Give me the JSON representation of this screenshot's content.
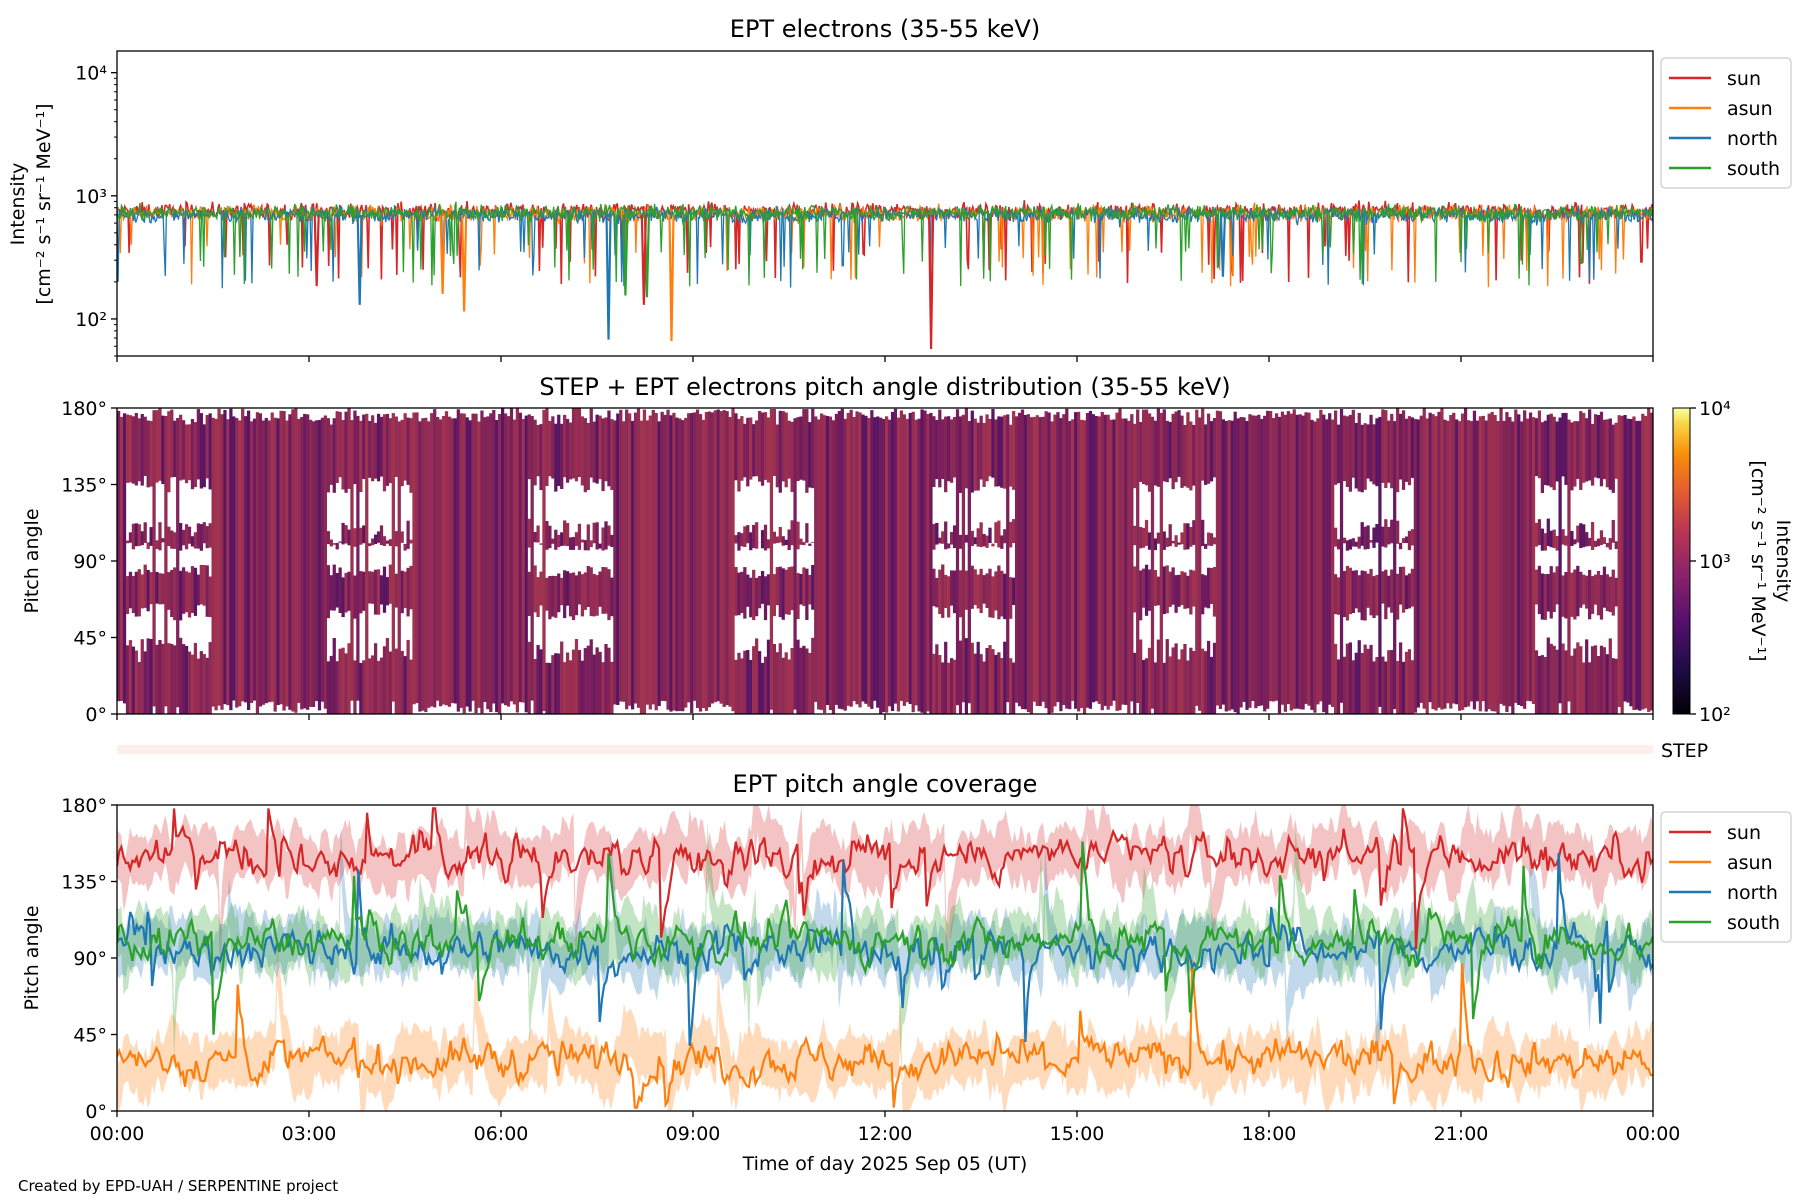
{
  "credit": "Created by EPD-UAH / SERPENTINE project",
  "colors": {
    "sun": "#d62728",
    "asun": "#ff7f0e",
    "north": "#1f77b4",
    "south": "#2ca02c",
    "pad": "#8b2a55"
  },
  "chart_data": [
    {
      "type": "line",
      "title": "EPT electrons (35-55 keV)",
      "ylabel": [
        "Intensity",
        "[cm⁻² s⁻¹ sr⁻¹ MeV⁻¹]"
      ],
      "yscale": "log",
      "ylim": [
        50,
        15000
      ],
      "yticks": [
        {
          "value": 100,
          "label": "10²"
        },
        {
          "value": 1000,
          "label": "10³"
        },
        {
          "value": 10000,
          "label": "10⁴"
        }
      ],
      "xlim_hours": [
        0,
        24
      ],
      "legend": "outside-right",
      "series": [
        {
          "name": "sun",
          "color": "#d62728",
          "baseline": 750,
          "min_dip": 57
        },
        {
          "name": "asun",
          "color": "#ff7f0e",
          "baseline": 720,
          "min_dip": 66
        },
        {
          "name": "north",
          "color": "#1f77b4",
          "baseline": 700,
          "min_dip": 68
        },
        {
          "name": "south",
          "color": "#2ca02c",
          "baseline": 730,
          "min_dip": 150
        }
      ]
    },
    {
      "type": "heatmap",
      "title": "STEP + EPT electrons pitch angle distribution (35-55 keV)",
      "ylabel": "Pitch angle",
      "ylim": [
        0,
        180
      ],
      "yticks": [
        "0°",
        "45°",
        "90°",
        "135°",
        "180°"
      ],
      "colorbar": {
        "label": [
          "Intensity",
          "[cm⁻² s⁻¹ sr⁻¹ MeV⁻¹]"
        ],
        "scale": "log",
        "range": [
          100,
          10000
        ],
        "ticks": [
          {
            "value": 100,
            "label": "10²"
          },
          {
            "value": 1000,
            "label": "10³"
          },
          {
            "value": 10000,
            "label": "10⁴"
          }
        ],
        "colormap": "inferno"
      }
    },
    {
      "type": "bar",
      "label": "STEP",
      "color": "#fdf0ea"
    },
    {
      "type": "line",
      "title": "EPT pitch angle coverage",
      "ylabel": "Pitch angle",
      "ylim": [
        0,
        180
      ],
      "yticks": [
        "0°",
        "45°",
        "90°",
        "135°",
        "180°"
      ],
      "xlabel": "Time of day 2025 Sep 05 (UT)",
      "xticks": [
        "00:00",
        "03:00",
        "06:00",
        "09:00",
        "12:00",
        "15:00",
        "18:00",
        "21:00",
        "00:00"
      ],
      "legend": "outside-right",
      "series": [
        {
          "name": "sun",
          "color": "#d62728",
          "mean": 150
        },
        {
          "name": "asun",
          "color": "#ff7f0e",
          "mean": 30
        },
        {
          "name": "north",
          "color": "#1f77b4",
          "mean": 95
        },
        {
          "name": "south",
          "color": "#2ca02c",
          "mean": 100
        }
      ]
    }
  ]
}
